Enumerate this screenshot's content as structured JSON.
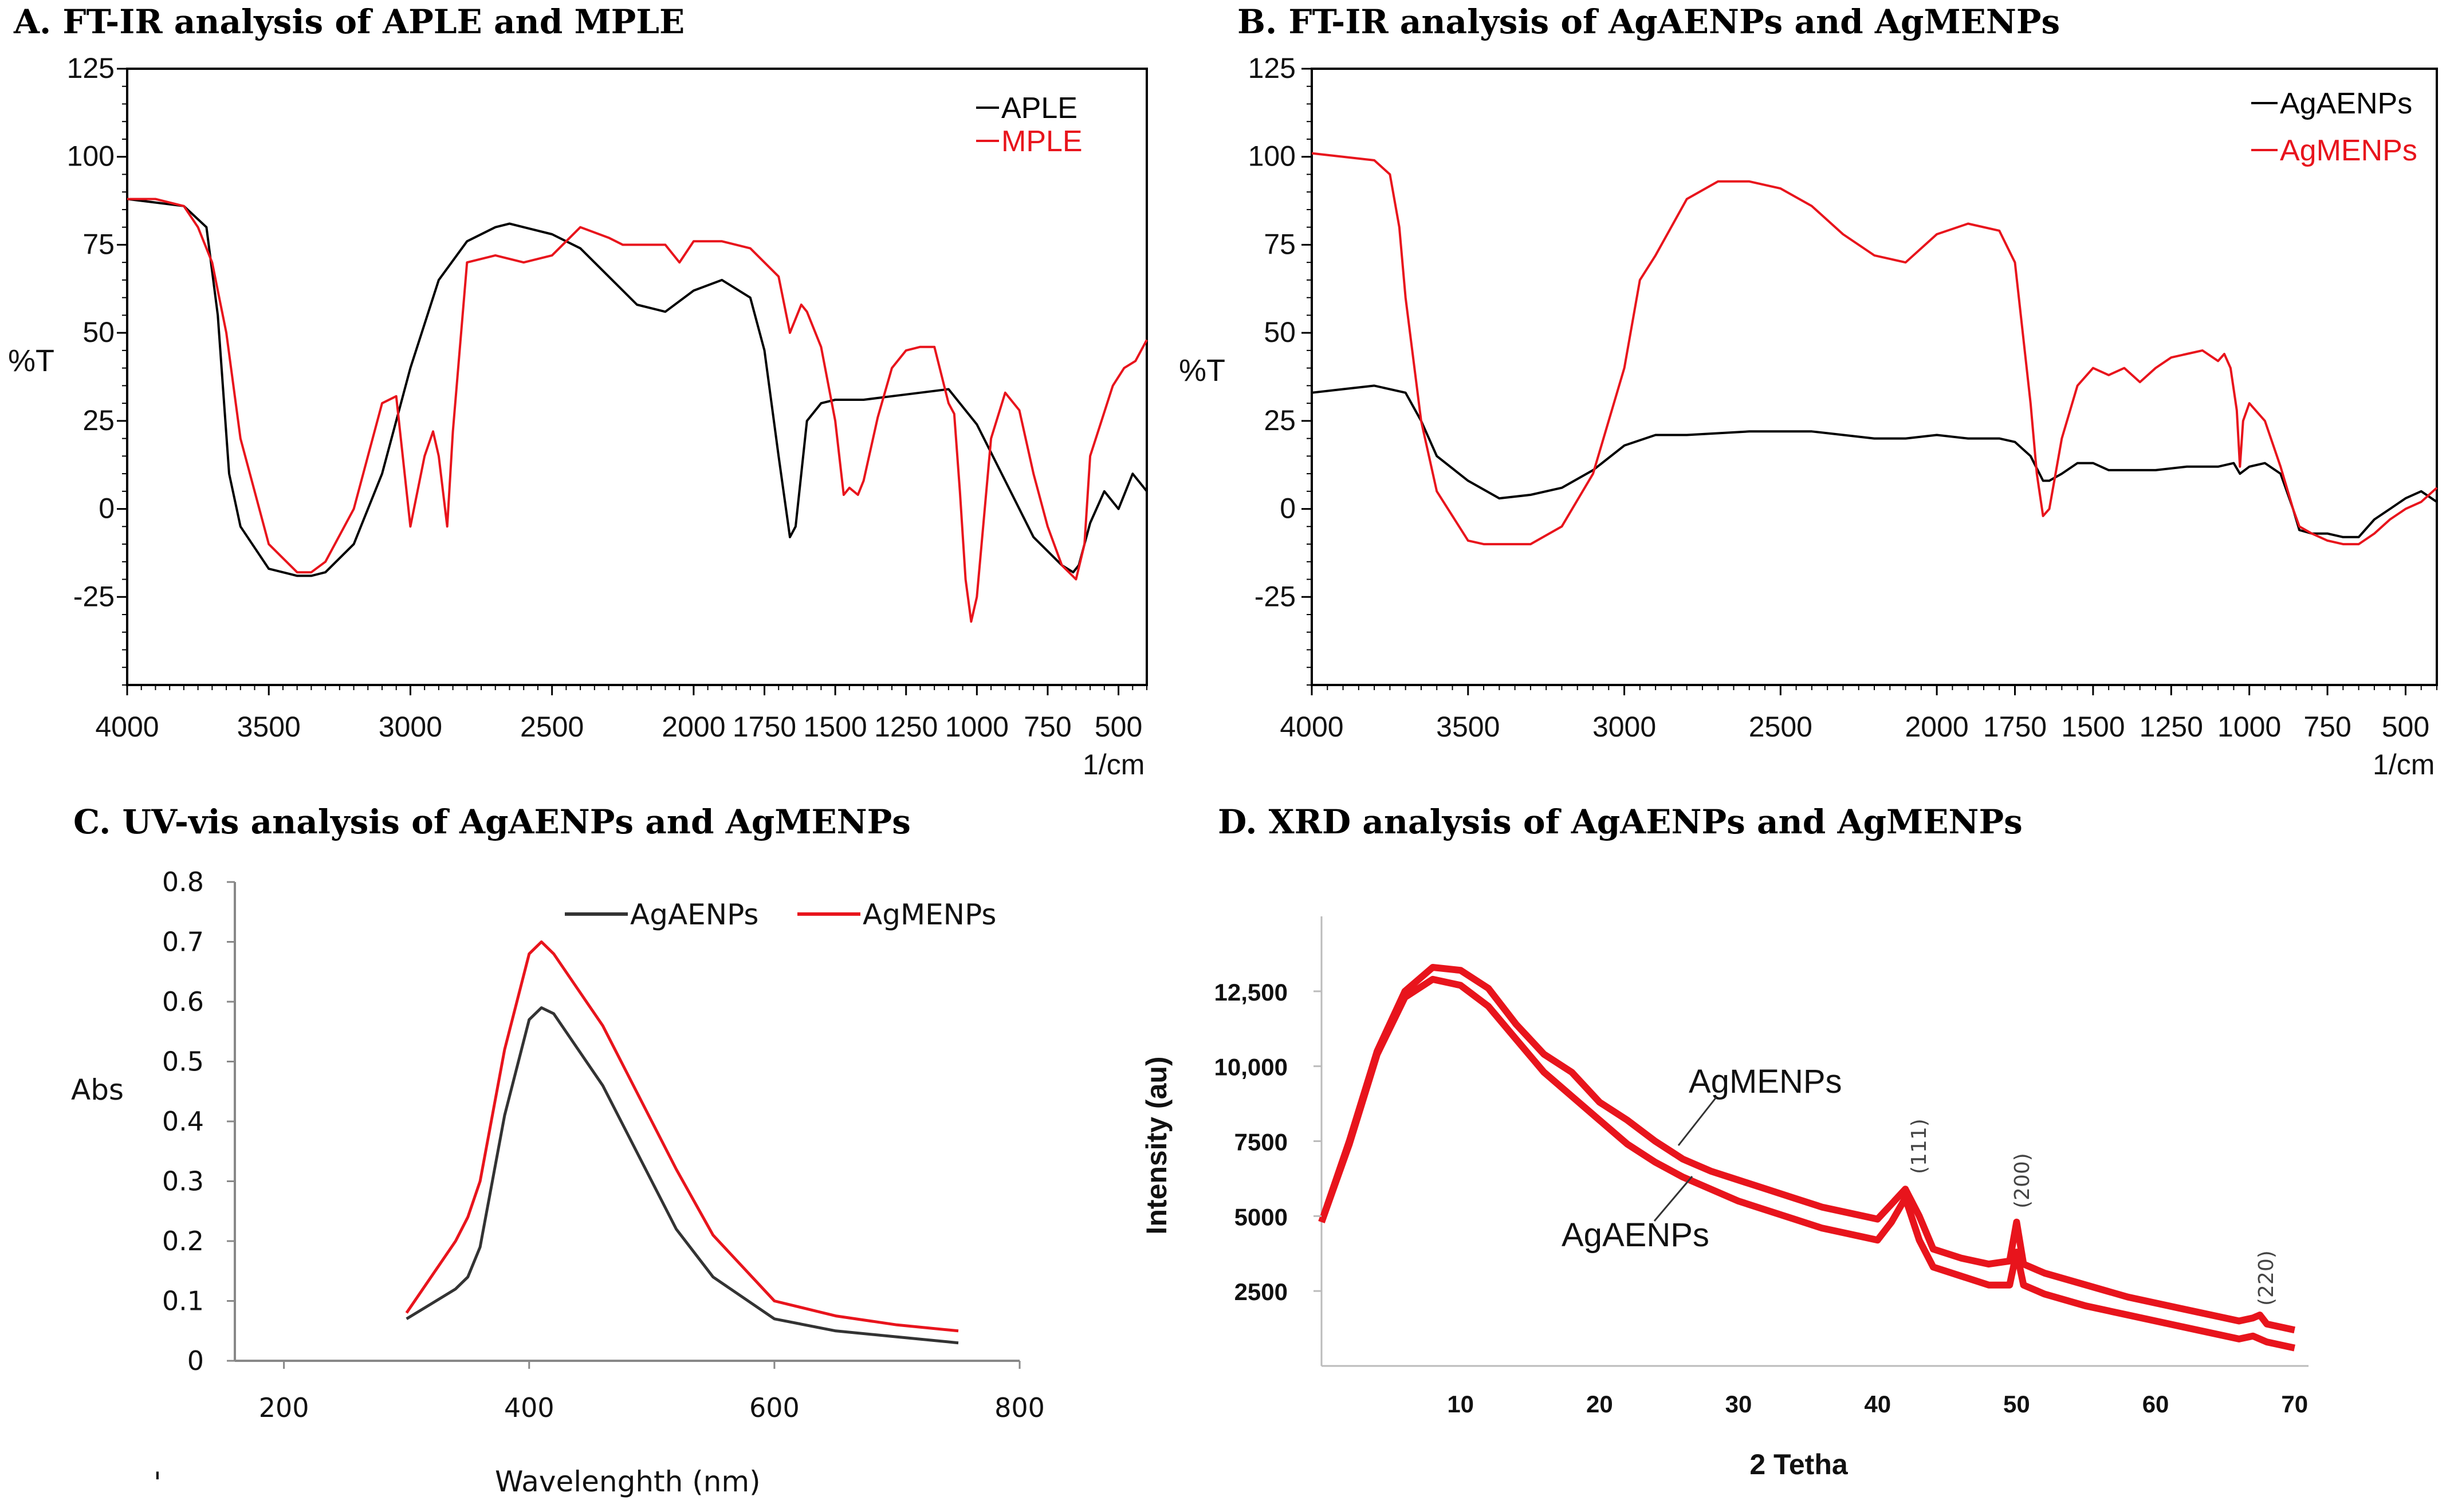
{
  "figure": {
    "panel_titles": [
      "A. FT-IR analysis of APLE and MPLE",
      "B. FT-IR analysis of AgAENPs and AgMENPs",
      "C. UV-vis analysis of AgAENPs and AgMENPs",
      "D. XRD analysis of AgAENPs and AgMENPs"
    ],
    "stray_mark": "'"
  },
  "chart_data": [
    {
      "id": "A",
      "type": "line",
      "title": "A. FT-IR analysis of APLE and MPLE",
      "xlabel": "1/cm",
      "ylabel": "%T",
      "xlim": [
        4000,
        400
      ],
      "ylim": [
        -50,
        125
      ],
      "x_ticks": [
        4000,
        3500,
        3000,
        2500,
        2000,
        1750,
        1500,
        1250,
        1000,
        750,
        500
      ],
      "x_tick_labels": [
        "4000",
        "3500",
        "3000",
        "2500",
        "2000",
        "1750",
        "1500",
        "1250",
        "1000",
        "750",
        "500"
      ],
      "y_ticks": [
        125,
        100,
        75,
        50,
        25,
        0,
        -25
      ],
      "y_tick_labels": [
        "125",
        "100",
        "75",
        "50",
        "25",
        "0",
        "-25"
      ],
      "legend_position": "top-right",
      "series": [
        {
          "name": "APLE",
          "color": "#000000",
          "x": [
            4000,
            3900,
            3800,
            3720,
            3680,
            3640,
            3600,
            3500,
            3400,
            3350,
            3300,
            3200,
            3100,
            3000,
            2900,
            2800,
            2700,
            2650,
            2600,
            2500,
            2400,
            2300,
            2200,
            2100,
            2000,
            1900,
            1800,
            1750,
            1700,
            1660,
            1640,
            1600,
            1550,
            1500,
            1400,
            1300,
            1200,
            1100,
            1000,
            900,
            800,
            700,
            660,
            640,
            600,
            550,
            500,
            450,
            400
          ],
          "y": [
            88,
            87,
            86,
            80,
            55,
            10,
            -5,
            -17,
            -19,
            -19,
            -18,
            -10,
            10,
            40,
            65,
            76,
            80,
            81,
            80,
            78,
            74,
            66,
            58,
            56,
            62,
            65,
            60,
            45,
            15,
            -8,
            -5,
            25,
            30,
            31,
            31,
            32,
            33,
            34,
            24,
            8,
            -8,
            -16,
            -18,
            -16,
            -4,
            5,
            0,
            10,
            5
          ]
        },
        {
          "name": "MPLE",
          "color": "#e8141c",
          "x": [
            4000,
            3900,
            3800,
            3750,
            3700,
            3650,
            3600,
            3500,
            3400,
            3350,
            3300,
            3200,
            3100,
            3050,
            3000,
            2950,
            2920,
            2900,
            2870,
            2850,
            2800,
            2700,
            2600,
            2500,
            2400,
            2300,
            2250,
            2100,
            2050,
            2000,
            1900,
            1800,
            1750,
            1700,
            1660,
            1620,
            1600,
            1550,
            1500,
            1470,
            1450,
            1420,
            1400,
            1350,
            1300,
            1250,
            1200,
            1150,
            1100,
            1080,
            1060,
            1040,
            1020,
            1000,
            950,
            900,
            850,
            800,
            750,
            700,
            650,
            620,
            600,
            560,
            520,
            480,
            440,
            400
          ],
          "y": [
            88,
            88,
            86,
            80,
            70,
            50,
            20,
            -10,
            -18,
            -18,
            -15,
            0,
            30,
            32,
            -5,
            15,
            22,
            15,
            -5,
            22,
            70,
            72,
            70,
            72,
            80,
            77,
            75,
            75,
            70,
            76,
            76,
            74,
            70,
            66,
            50,
            58,
            56,
            46,
            25,
            4,
            6,
            4,
            8,
            26,
            40,
            45,
            46,
            46,
            30,
            27,
            5,
            -20,
            -32,
            -25,
            20,
            33,
            28,
            10,
            -5,
            -16,
            -20,
            -10,
            15,
            25,
            35,
            40,
            42,
            48
          ]
        }
      ]
    },
    {
      "id": "B",
      "type": "line",
      "title": "B. FT-IR analysis of AgAENPs and AgMENPs",
      "xlabel": "1/cm",
      "ylabel": "%T",
      "xlim": [
        4000,
        400
      ],
      "ylim": [
        -50,
        125
      ],
      "x_ticks": [
        4000,
        3500,
        3000,
        2500,
        2000,
        1750,
        1500,
        1250,
        1000,
        750,
        500
      ],
      "x_tick_labels": [
        "4000",
        "3500",
        "3000",
        "2500",
        "2000",
        "1750",
        "1500",
        "1250",
        "1000",
        "750",
        "500"
      ],
      "y_ticks": [
        125,
        100,
        75,
        50,
        25,
        0,
        -25
      ],
      "y_tick_labels": [
        "125",
        "100",
        "75",
        "50",
        "25",
        "0",
        "-25"
      ],
      "legend_position": "top-right",
      "series": [
        {
          "name": "AgAENPs",
          "color": "#000000",
          "x": [
            4000,
            3900,
            3800,
            3700,
            3650,
            3600,
            3500,
            3400,
            3300,
            3200,
            3100,
            3000,
            2900,
            2800,
            2600,
            2400,
            2200,
            2100,
            2000,
            1900,
            1800,
            1750,
            1700,
            1660,
            1640,
            1600,
            1550,
            1500,
            1450,
            1400,
            1300,
            1200,
            1100,
            1050,
            1030,
            1000,
            950,
            900,
            860,
            840,
            800,
            750,
            700,
            650,
            600,
            550,
            500,
            450,
            400
          ],
          "y": [
            33,
            34,
            35,
            33,
            25,
            15,
            8,
            3,
            4,
            6,
            11,
            18,
            21,
            21,
            22,
            22,
            20,
            20,
            21,
            20,
            20,
            19,
            15,
            8,
            8,
            10,
            13,
            13,
            11,
            11,
            11,
            12,
            12,
            13,
            10,
            12,
            13,
            10,
            0,
            -6,
            -7,
            -7,
            -8,
            -8,
            -3,
            0,
            3,
            5,
            2
          ]
        },
        {
          "name": "AgMENPs",
          "color": "#e8141c",
          "x": [
            4000,
            3900,
            3800,
            3750,
            3720,
            3700,
            3650,
            3600,
            3500,
            3450,
            3400,
            3300,
            3200,
            3100,
            3000,
            2950,
            2900,
            2850,
            2800,
            2700,
            2600,
            2500,
            2400,
            2300,
            2200,
            2100,
            2000,
            1900,
            1800,
            1750,
            1700,
            1680,
            1660,
            1640,
            1600,
            1550,
            1500,
            1450,
            1400,
            1350,
            1300,
            1250,
            1200,
            1150,
            1100,
            1080,
            1060,
            1040,
            1030,
            1020,
            1000,
            950,
            900,
            860,
            840,
            800,
            750,
            700,
            650,
            600,
            550,
            500,
            450,
            400
          ],
          "y": [
            101,
            100,
            99,
            95,
            80,
            60,
            25,
            5,
            -9,
            -10,
            -10,
            -10,
            -5,
            10,
            40,
            65,
            72,
            80,
            88,
            93,
            93,
            91,
            86,
            78,
            72,
            70,
            78,
            81,
            79,
            70,
            30,
            10,
            -2,
            0,
            20,
            35,
            40,
            38,
            40,
            36,
            40,
            43,
            44,
            45,
            42,
            44,
            40,
            28,
            12,
            25,
            30,
            25,
            12,
            0,
            -5,
            -7,
            -9,
            -10,
            -10,
            -7,
            -3,
            0,
            2,
            6
          ]
        }
      ]
    },
    {
      "id": "C",
      "type": "line",
      "title": "C. UV-vis analysis of AgAENPs and AgMENPs",
      "xlabel": "Wavelenghth (nm)",
      "ylabel": "Abs",
      "xlim": [
        160,
        800
      ],
      "ylim": [
        0,
        0.8
      ],
      "x_ticks": [
        200,
        400,
        600,
        800
      ],
      "x_tick_labels": [
        "200",
        "400",
        "600",
        "800"
      ],
      "y_ticks": [
        0.8,
        0.7,
        0.6,
        0.5,
        0.4,
        0.3,
        0.2,
        0.1,
        0
      ],
      "y_tick_labels": [
        "0.8",
        "0.7",
        "0.6",
        "0.5",
        "0.4",
        "0.3",
        "0.2",
        "0.1",
        "0"
      ],
      "legend_position": "top",
      "series": [
        {
          "name": "AgAENPs",
          "color": "#333333",
          "x": [
            300,
            320,
            340,
            350,
            360,
            380,
            400,
            410,
            420,
            440,
            460,
            480,
            500,
            520,
            550,
            600,
            650,
            700,
            750
          ],
          "y": [
            0.07,
            0.095,
            0.12,
            0.14,
            0.19,
            0.41,
            0.57,
            0.59,
            0.58,
            0.52,
            0.46,
            0.38,
            0.3,
            0.22,
            0.14,
            0.07,
            0.05,
            0.04,
            0.03
          ]
        },
        {
          "name": "AgMENPs",
          "color": "#e8141c",
          "x": [
            300,
            320,
            340,
            350,
            360,
            380,
            400,
            410,
            420,
            440,
            460,
            480,
            500,
            520,
            550,
            600,
            650,
            700,
            750
          ],
          "y": [
            0.08,
            0.14,
            0.2,
            0.24,
            0.3,
            0.52,
            0.68,
            0.7,
            0.68,
            0.62,
            0.56,
            0.48,
            0.4,
            0.32,
            0.21,
            0.1,
            0.075,
            0.06,
            0.05
          ]
        }
      ]
    },
    {
      "id": "D",
      "type": "line",
      "title": "D. XRD analysis of AgAENPs and AgMENPs",
      "xlabel": "2 Tetha",
      "ylabel": "Intensity (au)",
      "xlim": [
        0,
        71
      ],
      "ylim": [
        0,
        15000
      ],
      "x_ticks": [
        10,
        20,
        30,
        40,
        50,
        60,
        70
      ],
      "x_tick_labels": [
        "10",
        "20",
        "30",
        "40",
        "50",
        "60",
        "70"
      ],
      "y_ticks": [
        12500,
        10000,
        7500,
        5000,
        2500
      ],
      "y_tick_labels": [
        "12,500",
        "10,000",
        "7500",
        "5000",
        "2500"
      ],
      "annotations": [
        "AgMENPs",
        "AgAENPs",
        "(111)",
        "(200)",
        "(220)"
      ],
      "series": [
        {
          "name": "AgMENPs",
          "color": "#e8141c",
          "x": [
            0,
            2,
            4,
            6,
            8,
            10,
            12,
            14,
            16,
            18,
            20,
            22,
            24,
            26,
            28,
            30,
            32,
            34,
            36,
            38,
            40,
            41,
            42,
            43,
            44,
            46,
            48,
            49.5,
            50,
            50.5,
            52,
            55,
            58,
            62,
            66,
            67,
            67.5,
            68,
            70
          ],
          "y": [
            4800,
            7500,
            10500,
            12500,
            13300,
            13200,
            12600,
            11400,
            10400,
            9800,
            8800,
            8200,
            7500,
            6900,
            6500,
            6200,
            5900,
            5600,
            5300,
            5100,
            4900,
            5400,
            5900,
            5000,
            3900,
            3600,
            3400,
            3500,
            4800,
            3400,
            3100,
            2700,
            2300,
            1900,
            1500,
            1600,
            1700,
            1400,
            1200
          ]
        },
        {
          "name": "AgAENPs",
          "color": "#e8141c",
          "x": [
            0,
            2,
            4,
            6,
            8,
            10,
            12,
            14,
            16,
            18,
            20,
            22,
            24,
            26,
            28,
            30,
            32,
            34,
            36,
            38,
            40,
            41,
            42,
            43,
            44,
            46,
            48,
            49.5,
            50,
            50.5,
            52,
            55,
            58,
            62,
            66,
            67,
            68,
            70
          ],
          "y": [
            4800,
            7400,
            10400,
            12300,
            12900,
            12700,
            12000,
            10900,
            9800,
            9000,
            8200,
            7400,
            6800,
            6300,
            5900,
            5500,
            5200,
            4900,
            4600,
            4400,
            4200,
            4800,
            5600,
            4200,
            3300,
            3000,
            2700,
            2700,
            3800,
            2700,
            2400,
            2000,
            1700,
            1300,
            900,
            1000,
            800,
            600
          ]
        }
      ]
    }
  ]
}
